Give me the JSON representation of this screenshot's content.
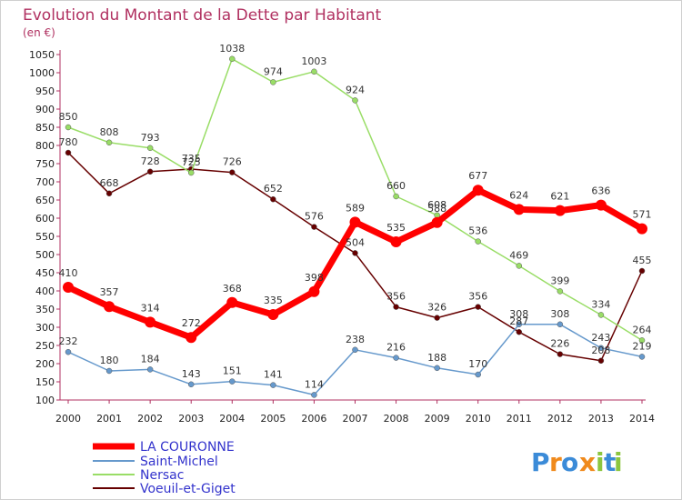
{
  "chart_data": {
    "type": "line",
    "title": "Evolution du Montant de la Dette par Habitant",
    "subtitle": "(en €)",
    "xlabel": "",
    "ylabel": "",
    "categories": [
      "2000",
      "2001",
      "2002",
      "2003",
      "2004",
      "2005",
      "2006",
      "2007",
      "2008",
      "2009",
      "2010",
      "2011",
      "2012",
      "2013",
      "2014"
    ],
    "ylim": [
      100,
      1050
    ],
    "yticks": [
      100,
      150,
      200,
      250,
      300,
      350,
      400,
      450,
      500,
      550,
      600,
      650,
      700,
      750,
      800,
      850,
      900,
      950,
      1000,
      1050
    ],
    "grid": false,
    "legend_position": "bottom-left",
    "series": [
      {
        "name": "LA COURONNE",
        "color": "#ff0000",
        "values": [
          410,
          357,
          314,
          272,
          368,
          335,
          398,
          589,
          535,
          588,
          677,
          624,
          621,
          636,
          571
        ]
      },
      {
        "name": "Saint-Michel",
        "color": "#6699cc",
        "values": [
          232,
          180,
          184,
          143,
          151,
          141,
          114,
          238,
          216,
          188,
          170,
          308,
          308,
          243,
          219
        ]
      },
      {
        "name": "Nersac",
        "color": "#99dd66",
        "values": [
          850,
          808,
          793,
          725,
          1038,
          974,
          1003,
          924,
          660,
          608,
          536,
          469,
          399,
          334,
          264
        ]
      },
      {
        "name": "Voeuil-et-Giget",
        "color": "#660000",
        "values": [
          780,
          668,
          728,
          735,
          726,
          652,
          576,
          504,
          356,
          326,
          356,
          287,
          226,
          208,
          455
        ]
      }
    ],
    "logo": {
      "letters": [
        "P",
        "r",
        "o",
        "x",
        "i",
        "t",
        "i"
      ],
      "colors": [
        "#3b8bd8",
        "#f08a1c",
        "#3b8bd8",
        "#f08a1c",
        "#8cc63f",
        "#3b8bd8",
        "#8cc63f"
      ]
    }
  }
}
